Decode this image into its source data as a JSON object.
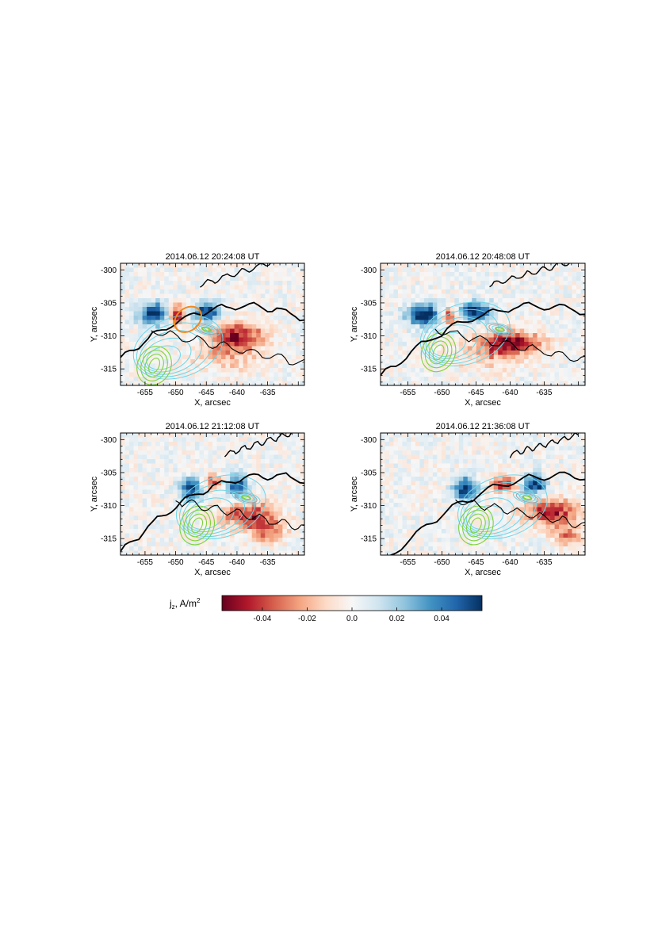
{
  "chart_data": {
    "type": "heatmap",
    "colorbar": {
      "label_main": "j",
      "label_sub": "z",
      "label_unit": ", A/m",
      "label_sup": "2",
      "range": [
        -0.058,
        0.058
      ],
      "ticks": [
        "-0.04",
        "-0.02",
        "0.0",
        "0.02",
        "0.04"
      ],
      "tick_values": [
        -0.04,
        -0.02,
        0.0,
        0.02,
        0.04
      ],
      "colormap": [
        "#67001f",
        "#b2182b",
        "#d6604d",
        "#f4a582",
        "#fddbc7",
        "#f7f7f7",
        "#d1e5f0",
        "#92c5de",
        "#4393c3",
        "#2166ac",
        "#053061"
      ]
    },
    "contour_colors": {
      "magnetic_boundary": "#000000",
      "cyan_emission": "#6ed6e8",
      "green_emission": "#7fd23a",
      "gray_emission": "#9aa3ad",
      "orange_region": "#f08a1c"
    },
    "panels": [
      {
        "title": "2014.06.12 20:24:08 UT",
        "xlabel": "X, arcsec",
        "ylabel": "Y, arcsec",
        "xlim": [
          -659,
          -629
        ],
        "ylim": [
          -317.5,
          -299
        ],
        "xticks": [
          "-655",
          "-650",
          "-645",
          "-640",
          "-635"
        ],
        "yticks": [
          "-300",
          "-305",
          "-310",
          "-315"
        ],
        "features": [
          {
            "kind": "blob",
            "x": -653.5,
            "y": -306.7,
            "rx": 2.6,
            "ry": 1.7,
            "v": 0.058
          },
          {
            "kind": "blob",
            "x": -645.0,
            "y": -306.4,
            "rx": 2.2,
            "ry": 1.6,
            "v": 0.058
          },
          {
            "kind": "blob",
            "x": -650.0,
            "y": -306.8,
            "rx": 1.6,
            "ry": 1.6,
            "v": -0.05
          },
          {
            "kind": "blob",
            "x": -640.0,
            "y": -310.0,
            "rx": 4.5,
            "ry": 2.0,
            "v": -0.05
          },
          {
            "kind": "blob",
            "x": -642.0,
            "y": -313.0,
            "rx": 5.5,
            "ry": 2.5,
            "v": -0.02
          }
        ],
        "orange_ellipse": {
          "x": -648.0,
          "y": -307.5,
          "rx": 2.4,
          "ry": 1.7,
          "angle": -40
        },
        "green_center": [
          -653.5,
          -314.5
        ],
        "gray_center": [
          -645.0,
          -309.0
        ]
      },
      {
        "title": "2014.06.12 20:48:08 UT",
        "xlabel": "X, arcsec",
        "ylabel": "Y, arcsec",
        "xlim": [
          -659,
          -629
        ],
        "ylim": [
          -317.5,
          -299
        ],
        "xticks": [
          "-655",
          "-650",
          "-645",
          "-640",
          "-635"
        ],
        "yticks": [
          "-300",
          "-305",
          "-310",
          "-315"
        ],
        "features": [
          {
            "kind": "blob",
            "x": -652.5,
            "y": -306.8,
            "rx": 2.8,
            "ry": 1.7,
            "v": 0.058
          },
          {
            "kind": "blob",
            "x": -645.0,
            "y": -306.3,
            "rx": 2.4,
            "ry": 1.5,
            "v": 0.058
          },
          {
            "kind": "blob",
            "x": -649.0,
            "y": -307.0,
            "rx": 1.4,
            "ry": 1.4,
            "v": -0.05
          },
          {
            "kind": "blob",
            "x": -639.5,
            "y": -311.0,
            "rx": 4.5,
            "ry": 1.8,
            "v": -0.05
          },
          {
            "kind": "blob",
            "x": -643.0,
            "y": -312.5,
            "rx": 5.0,
            "ry": 2.5,
            "v": -0.02
          }
        ],
        "green_center": [
          -650.5,
          -312.5
        ],
        "gray_center": [
          -641.5,
          -309.0
        ]
      },
      {
        "title": "2014.06.12 21:12:08 UT",
        "xlabel": "X, arcsec",
        "ylabel": "Y, arcsec",
        "xlim": [
          -659,
          -629
        ],
        "ylim": [
          -317.5,
          -299
        ],
        "xticks": [
          "-655",
          "-650",
          "-645",
          "-640",
          "-635"
        ],
        "yticks": [
          "-300",
          "-305",
          "-310",
          "-315"
        ],
        "features": [
          {
            "kind": "blob",
            "x": -647.5,
            "y": -307.5,
            "rx": 1.8,
            "ry": 1.8,
            "v": 0.058
          },
          {
            "kind": "blob",
            "x": -640.0,
            "y": -307.0,
            "rx": 1.7,
            "ry": 1.6,
            "v": 0.058
          },
          {
            "kind": "blob",
            "x": -644.0,
            "y": -306.5,
            "rx": 1.5,
            "ry": 1.2,
            "v": -0.04
          },
          {
            "kind": "blob",
            "x": -638.0,
            "y": -311.5,
            "rx": 4.5,
            "ry": 2.0,
            "v": -0.045
          },
          {
            "kind": "blob",
            "x": -635.0,
            "y": -314.0,
            "rx": 3.0,
            "ry": 1.8,
            "v": -0.03
          }
        ],
        "green_center": [
          -646.5,
          -313.0
        ],
        "gray_center": [
          -638.5,
          -308.8
        ]
      },
      {
        "title": "2014.06.12 21:36:08 UT",
        "xlabel": "X, arcsec",
        "ylabel": "Y, arcsec",
        "xlim": [
          -659,
          -629
        ],
        "ylim": [
          -317.5,
          -299
        ],
        "xticks": [
          "-655",
          "-650",
          "-645",
          "-640",
          "-635"
        ],
        "yticks": [
          "-300",
          "-305",
          "-310",
          "-315"
        ],
        "features": [
          {
            "kind": "blob",
            "x": -646.5,
            "y": -307.5,
            "rx": 1.8,
            "ry": 1.8,
            "v": 0.058
          },
          {
            "kind": "blob",
            "x": -636.5,
            "y": -306.8,
            "rx": 1.7,
            "ry": 1.6,
            "v": 0.058
          },
          {
            "kind": "blob",
            "x": -641.0,
            "y": -306.8,
            "rx": 2.2,
            "ry": 1.2,
            "v": -0.045
          },
          {
            "kind": "blob",
            "x": -634.0,
            "y": -311.0,
            "rx": 4.0,
            "ry": 2.0,
            "v": -0.05
          },
          {
            "kind": "blob",
            "x": -631.5,
            "y": -314.5,
            "rx": 2.5,
            "ry": 1.5,
            "v": -0.03
          }
        ],
        "green_center": [
          -645.0,
          -313.0
        ],
        "gray_center": [
          -637.5,
          -308.8
        ]
      }
    ]
  }
}
